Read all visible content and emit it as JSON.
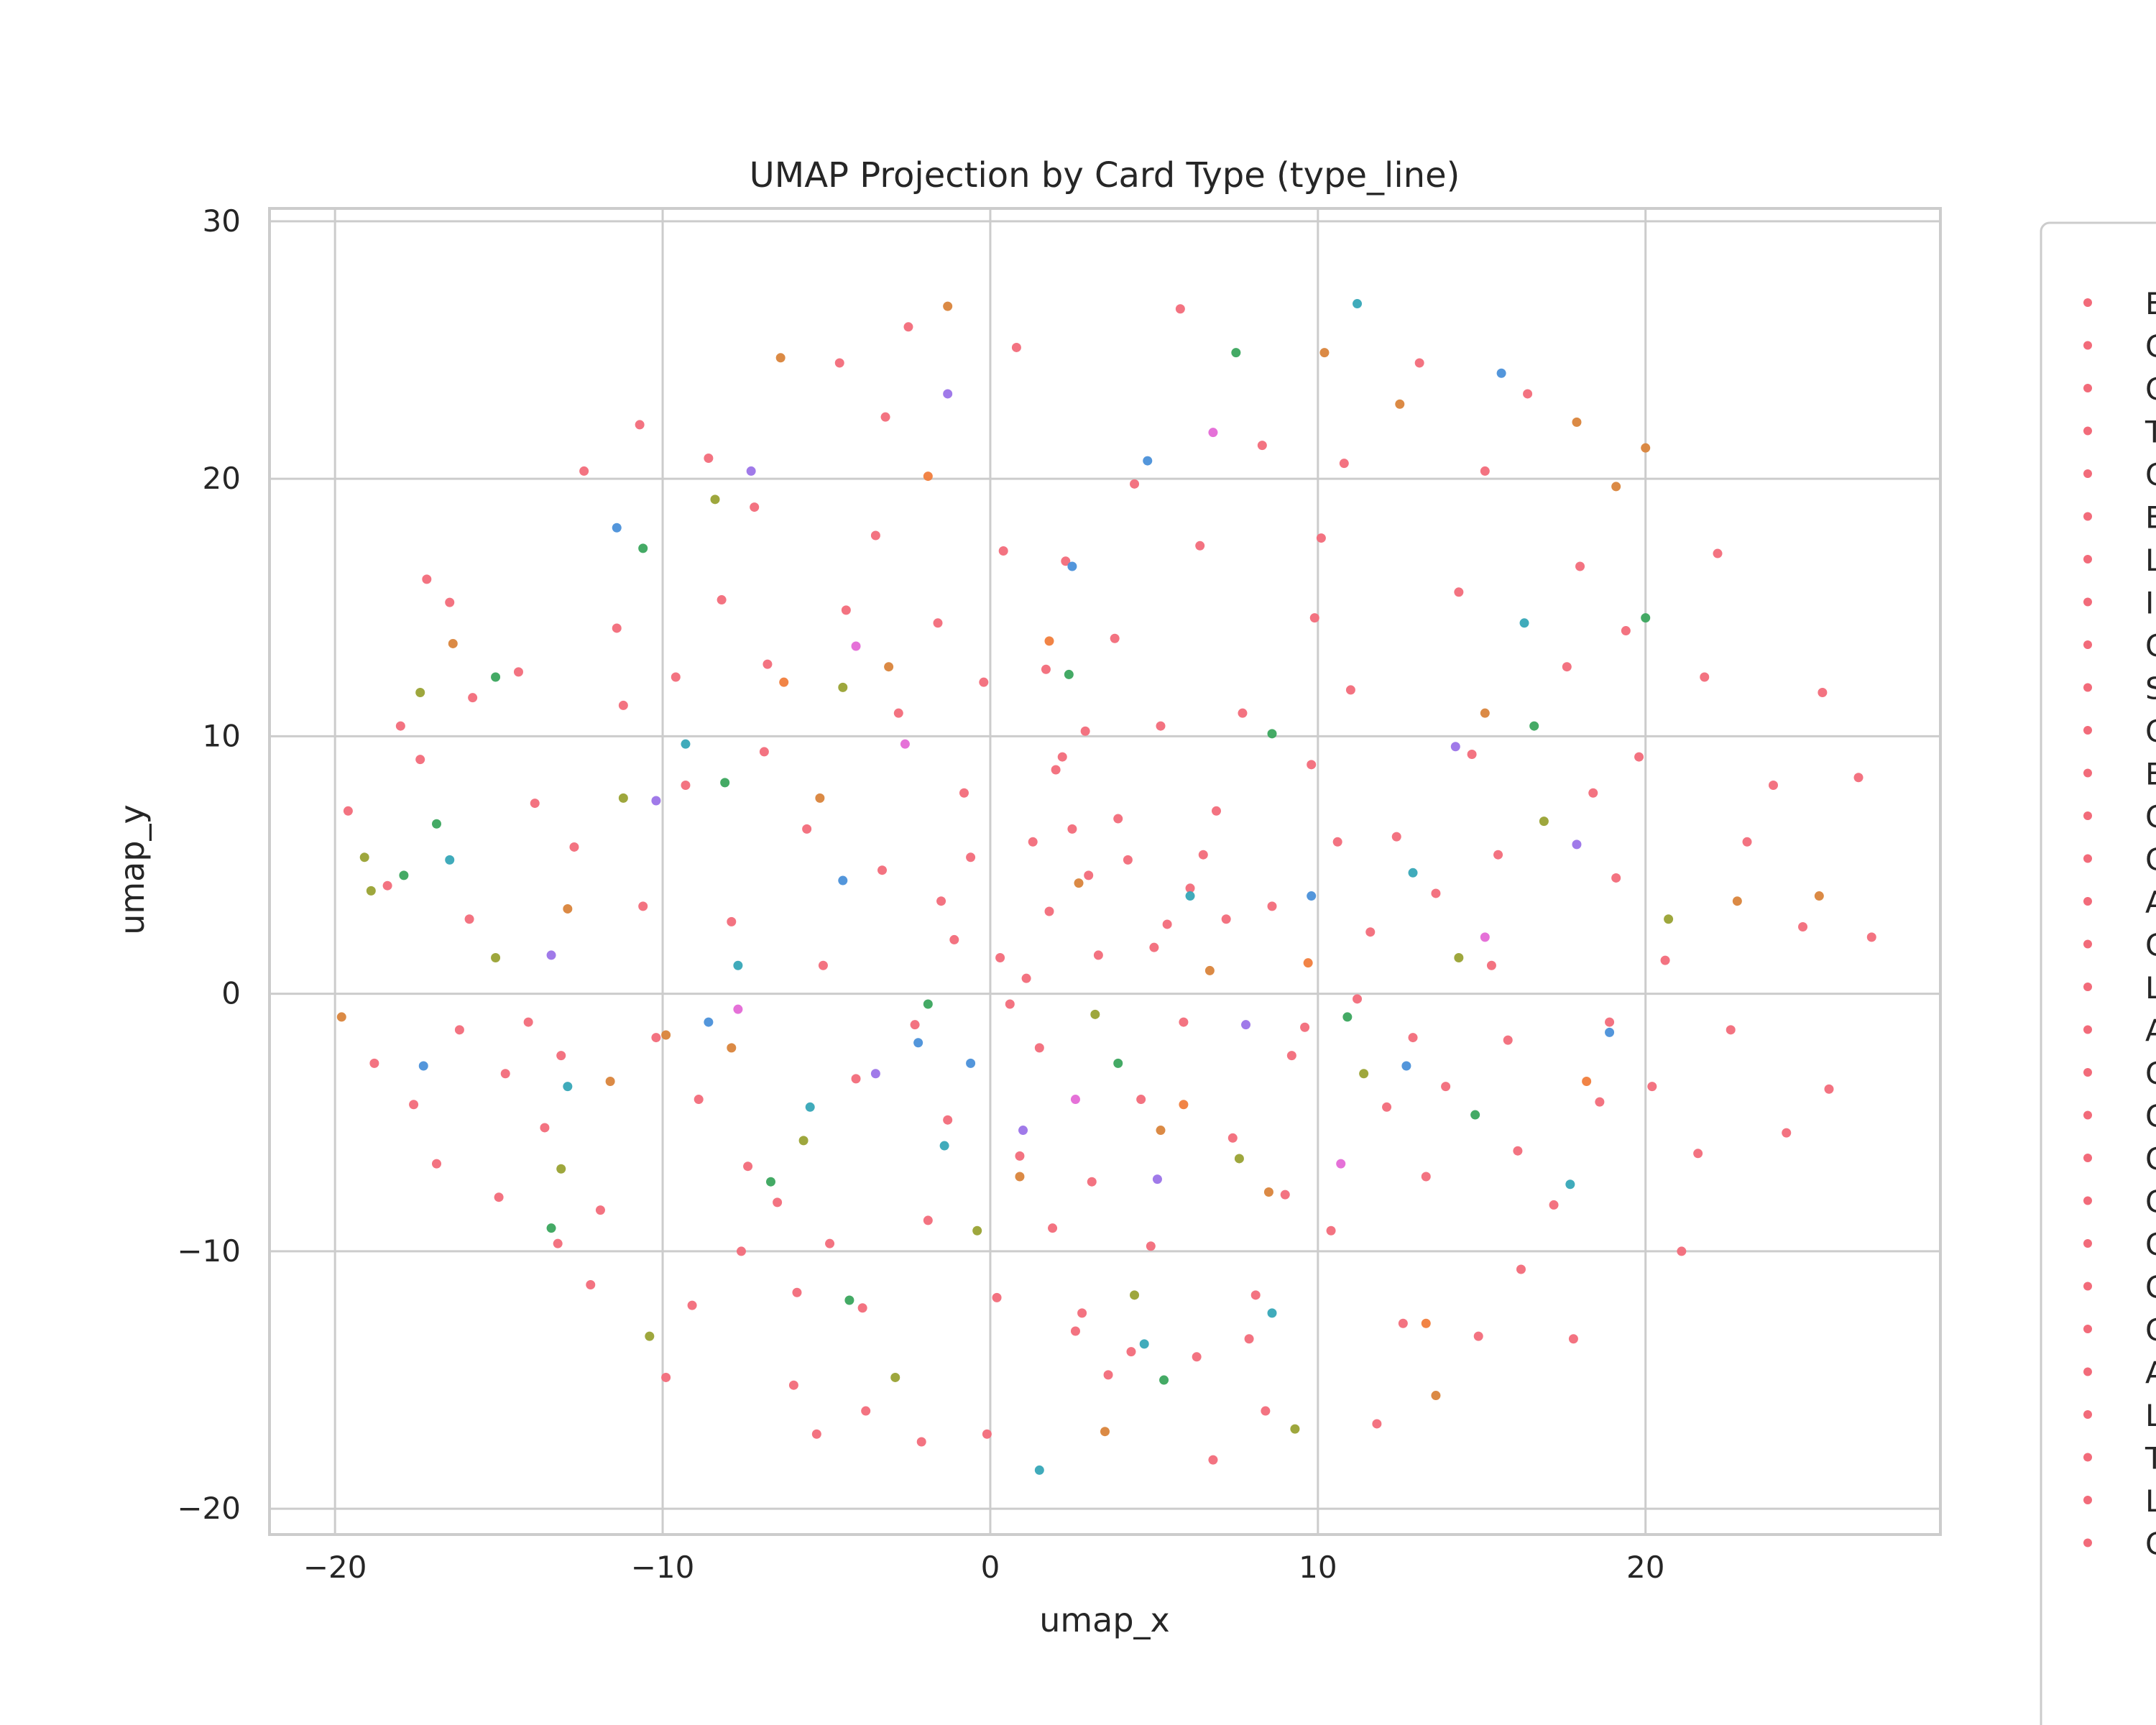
{
  "chart_data": {
    "type": "scatter",
    "title": "UMAP Projection by Card Type (type_line)",
    "xlabel": "umap_x",
    "ylabel": "umap_y",
    "xlim": [
      -22,
      29
    ],
    "ylim": [
      -21,
      30.5
    ],
    "xticks": [
      -20,
      -10,
      0,
      10,
      20
    ],
    "yticks": [
      -20,
      -10,
      0,
      10,
      20,
      30
    ],
    "xtick_labels": [
      "−20",
      "−10",
      "0",
      "10",
      "20"
    ],
    "ytick_labels": [
      "−20",
      "−10",
      "0",
      "10",
      "20",
      "30"
    ],
    "grid": true,
    "legend_placement": "right, outside plot (clipped at image edge)",
    "legend_labels": [
      "E",
      "C",
      "C",
      "T",
      "C",
      "E",
      "L",
      "I",
      "C",
      "S",
      "C",
      "E",
      "C",
      "C",
      "A",
      "C",
      "L",
      "A",
      "C",
      "C",
      "C",
      "C",
      "C",
      "C",
      "C",
      "A",
      "L",
      "T",
      "L",
      "C"
    ],
    "colors": {
      "background": "#ffffff",
      "grid": "#cccccc",
      "axes_edge": "#cccccc",
      "text": "#262626",
      "dominant_series": "#f26b7a",
      "secondary_series": [
        "#d9843b",
        "#99a233",
        "#3aa55d",
        "#36a6b7",
        "#4a90d9",
        "#9b73e8",
        "#e469d6",
        "#f07d3c"
      ]
    },
    "series": [
      {
        "color": "#f26b7a",
        "points": [
          [
            -19.6,
            7.1
          ],
          [
            -18,
            10.4
          ],
          [
            -17.6,
            -4.3
          ],
          [
            -17.2,
            16.1
          ],
          [
            -16.5,
            15.2
          ],
          [
            -15.8,
            11.5
          ],
          [
            -15,
            -7.9
          ],
          [
            -14.1,
            -1.1
          ],
          [
            -13.2,
            -9.7
          ],
          [
            -12.4,
            20.3
          ],
          [
            -11.4,
            14.2
          ],
          [
            -10.7,
            22.1
          ],
          [
            -9.9,
            -14.9
          ],
          [
            -9.1,
            -12.1
          ],
          [
            -8.6,
            20.8
          ],
          [
            -7.6,
            -10
          ],
          [
            -7.2,
            18.9
          ],
          [
            -6.5,
            -8.1
          ],
          [
            -6,
            -15.2
          ],
          [
            -5.3,
            -17.1
          ],
          [
            -4.6,
            24.5
          ],
          [
            -3.8,
            -16.2
          ],
          [
            -3.2,
            22.4
          ],
          [
            -2.5,
            25.9
          ],
          [
            -2.1,
            -17.4
          ],
          [
            -1.5,
            3.6
          ],
          [
            -1.1,
            2.1
          ],
          [
            -0.6,
            5.3
          ],
          [
            -0.1,
            -17.1
          ],
          [
            0.3,
            1.4
          ],
          [
            0.6,
            -0.4
          ],
          [
            0.8,
            25.1
          ],
          [
            1.1,
            0.6
          ],
          [
            1.3,
            5.9
          ],
          [
            1.5,
            -2.1
          ],
          [
            1.8,
            3.2
          ],
          [
            2,
            8.7
          ],
          [
            2.2,
            9.2
          ],
          [
            2.5,
            6.4
          ],
          [
            2.8,
            -12.4
          ],
          [
            3,
            4.6
          ],
          [
            3.3,
            1.5
          ],
          [
            3.6,
            -14.8
          ],
          [
            3.9,
            6.8
          ],
          [
            4.2,
            5.2
          ],
          [
            4.6,
            -4.1
          ],
          [
            5,
            1.8
          ],
          [
            5.4,
            2.7
          ],
          [
            5.8,
            26.6
          ],
          [
            6.1,
            4.1
          ],
          [
            6.5,
            5.4
          ],
          [
            6.8,
            -18.1
          ],
          [
            7.2,
            2.9
          ],
          [
            7.7,
            10.9
          ],
          [
            8.1,
            -11.7
          ],
          [
            8.6,
            3.4
          ],
          [
            9.2,
            -2.4
          ],
          [
            9.6,
            -1.3
          ],
          [
            10.1,
            17.7
          ],
          [
            10.6,
            5.9
          ],
          [
            11.2,
            -0.2
          ],
          [
            11.8,
            -16.7
          ],
          [
            12.4,
            6.1
          ],
          [
            13.1,
            24.5
          ],
          [
            13.9,
            -3.6
          ],
          [
            14.7,
            9.3
          ],
          [
            15.1,
            20.3
          ],
          [
            15.5,
            5.4
          ],
          [
            16.4,
            23.3
          ],
          [
            17.2,
            -8.2
          ],
          [
            18,
            16.6
          ],
          [
            18.6,
            -4.2
          ],
          [
            19.4,
            14.1
          ],
          [
            20.2,
            -3.6
          ],
          [
            21.1,
            -10
          ],
          [
            22.2,
            17.1
          ],
          [
            23.1,
            5.9
          ],
          [
            24.3,
            -5.4
          ],
          [
            25.6,
            -3.7
          ],
          [
            26.5,
            8.4
          ],
          [
            26.9,
            2.2
          ],
          [
            -18.8,
            -2.7
          ],
          [
            -16.9,
            -6.6
          ],
          [
            -14.4,
            12.5
          ],
          [
            -12.7,
            5.7
          ],
          [
            -10.6,
            3.4
          ],
          [
            -8.9,
            -4.1
          ],
          [
            -6.9,
            9.4
          ],
          [
            -4.9,
            -9.7
          ],
          [
            -3.5,
            17.8
          ],
          [
            -1.9,
            -8.8
          ],
          [
            0.4,
            17.2
          ],
          [
            2.6,
            -13.1
          ],
          [
            4.4,
            19.8
          ],
          [
            6.3,
            -14.1
          ],
          [
            8.3,
            21.3
          ],
          [
            10.4,
            -9.2
          ],
          [
            12.6,
            -12.8
          ],
          [
            14.3,
            15.6
          ],
          [
            16.2,
            -10.7
          ],
          [
            19.1,
            4.5
          ],
          [
            21.6,
            -6.2
          ],
          [
            23.9,
            8.1
          ],
          [
            24.8,
            2.6
          ],
          [
            25.4,
            11.7
          ],
          [
            -13.6,
            -5.2
          ],
          [
            -11.9,
            -8.4
          ],
          [
            -9.6,
            12.3
          ],
          [
            -7.9,
            2.8
          ],
          [
            -5.6,
            6.4
          ],
          [
            -4.1,
            -3.3
          ],
          [
            -2.8,
            10.9
          ],
          [
            -0.8,
            7.8
          ],
          [
            1.7,
            12.6
          ],
          [
            3.1,
            -7.3
          ],
          [
            5.2,
            10.4
          ],
          [
            7.4,
            -5.6
          ],
          [
            9.8,
            8.9
          ],
          [
            11.6,
            2.4
          ],
          [
            13.3,
            -7.1
          ],
          [
            15.8,
            -1.8
          ],
          [
            17.6,
            12.7
          ],
          [
            20.6,
            1.3
          ],
          [
            -15.9,
            2.9
          ],
          [
            -13.1,
            -2.4
          ],
          [
            -10.2,
            -1.7
          ],
          [
            -7.4,
            -6.7
          ],
          [
            -5.1,
            1.1
          ],
          [
            -3.3,
            4.8
          ],
          [
            -1.3,
            -4.9
          ],
          [
            0.9,
            -6.3
          ],
          [
            2.9,
            10.2
          ],
          [
            4.9,
            -9.8
          ],
          [
            6.9,
            7.1
          ],
          [
            9,
            -7.8
          ],
          [
            11,
            11.8
          ],
          [
            13.6,
            3.9
          ],
          [
            16.1,
            -6.1
          ],
          [
            18.4,
            7.8
          ],
          [
            22.6,
            -1.4
          ],
          [
            -17.4,
            9.1
          ],
          [
            -14.8,
            -3.1
          ],
          [
            -12.2,
            -11.3
          ],
          [
            -9.3,
            8.1
          ],
          [
            -6.8,
            12.8
          ],
          [
            -4.4,
            14.9
          ],
          [
            -2.3,
            -1.2
          ],
          [
            -0.2,
            12.1
          ],
          [
            1.9,
            -9.1
          ],
          [
            3.8,
            13.8
          ],
          [
            5.9,
            -1.1
          ],
          [
            7.9,
            -13.4
          ],
          [
            9.9,
            14.6
          ],
          [
            12.1,
            -4.4
          ],
          [
            14.9,
            -13.3
          ],
          [
            17.8,
            -13.4
          ],
          [
            19.8,
            9.2
          ],
          [
            -18.4,
            4.2
          ],
          [
            -16.2,
            -1.4
          ],
          [
            -13.9,
            7.4
          ],
          [
            -11.2,
            11.2
          ],
          [
            -8.2,
            15.3
          ],
          [
            -5.9,
            -11.6
          ],
          [
            -3.9,
            -12.2
          ],
          [
            -1.6,
            14.4
          ],
          [
            0.2,
            -11.8
          ],
          [
            2.3,
            16.8
          ],
          [
            4.3,
            -13.9
          ],
          [
            6.4,
            17.4
          ],
          [
            8.4,
            -16.2
          ],
          [
            10.8,
            20.6
          ],
          [
            12.9,
            -1.7
          ],
          [
            15.3,
            1.1
          ],
          [
            18.9,
            -1.1
          ],
          [
            21.8,
            12.3
          ]
        ]
      },
      {
        "color": "#d9843b",
        "points": [
          [
            -19.8,
            -0.9
          ],
          [
            -16.4,
            13.6
          ],
          [
            -12.9,
            3.3
          ],
          [
            -9.9,
            -1.6
          ],
          [
            -7.9,
            -2.1
          ],
          [
            -6.4,
            24.7
          ],
          [
            -3.1,
            12.7
          ],
          [
            -1.3,
            26.7
          ],
          [
            0.9,
            -7.1
          ],
          [
            3.5,
            -17
          ],
          [
            5.2,
            -5.3
          ],
          [
            8.5,
            -7.7
          ],
          [
            10.2,
            24.9
          ],
          [
            12.5,
            22.9
          ],
          [
            15.1,
            10.9
          ],
          [
            17.9,
            22.2
          ],
          [
            19.1,
            19.7
          ],
          [
            20,
            21.2
          ],
          [
            22.8,
            3.6
          ],
          [
            25.3,
            3.8
          ],
          [
            -11.6,
            -3.4
          ],
          [
            -5.2,
            7.6
          ],
          [
            2.7,
            4.3
          ],
          [
            6.7,
            0.9
          ],
          [
            13.6,
            -15.6
          ]
        ]
      },
      {
        "color": "#99a233",
        "points": [
          [
            -19.1,
            5.3
          ],
          [
            -18.9,
            4
          ],
          [
            -17.4,
            11.7
          ],
          [
            -15.1,
            1.4
          ],
          [
            -13.1,
            -6.8
          ],
          [
            -10.4,
            -13.3
          ],
          [
            -8.4,
            19.2
          ],
          [
            -5.7,
            -5.7
          ],
          [
            -2.9,
            -14.9
          ],
          [
            -0.4,
            -9.2
          ],
          [
            3.2,
            -0.8
          ],
          [
            4.4,
            -11.7
          ],
          [
            7.6,
            -6.4
          ],
          [
            9.3,
            -16.9
          ],
          [
            11.4,
            -3.1
          ],
          [
            14.3,
            1.4
          ],
          [
            16.9,
            6.7
          ],
          [
            20.7,
            2.9
          ],
          [
            -11.2,
            7.6
          ],
          [
            -4.5,
            11.9
          ]
        ]
      },
      {
        "color": "#3aa55d",
        "points": [
          [
            -17.9,
            4.6
          ],
          [
            -16.9,
            6.6
          ],
          [
            -15.1,
            12.3
          ],
          [
            -13.4,
            -9.1
          ],
          [
            -10.6,
            17.3
          ],
          [
            -6.7,
            -7.3
          ],
          [
            -4.3,
            -11.9
          ],
          [
            -1.9,
            -0.4
          ],
          [
            2.4,
            12.4
          ],
          [
            5.3,
            -15
          ],
          [
            7.5,
            24.9
          ],
          [
            8.6,
            10.1
          ],
          [
            10.9,
            -0.9
          ],
          [
            14.8,
            -4.7
          ],
          [
            16.6,
            10.4
          ],
          [
            20,
            14.6
          ],
          [
            -8.1,
            8.2
          ],
          [
            3.9,
            -2.7
          ]
        ]
      },
      {
        "color": "#36a6b7",
        "points": [
          [
            -16.5,
            5.2
          ],
          [
            -12.9,
            -3.6
          ],
          [
            -9.3,
            9.7
          ],
          [
            -5.5,
            -4.4
          ],
          [
            -1.4,
            -5.9
          ],
          [
            1.5,
            -18.5
          ],
          [
            4.7,
            -13.6
          ],
          [
            8.6,
            -12.4
          ],
          [
            11.2,
            26.8
          ],
          [
            12.9,
            4.7
          ],
          [
            16.3,
            14.4
          ],
          [
            17.7,
            -7.4
          ],
          [
            -7.7,
            1.1
          ],
          [
            6.1,
            3.8
          ]
        ]
      },
      {
        "color": "#4a90d9",
        "points": [
          [
            -17.3,
            -2.8
          ],
          [
            -11.4,
            18.1
          ],
          [
            -8.6,
            -1.1
          ],
          [
            -4.5,
            4.4
          ],
          [
            -0.6,
            -2.7
          ],
          [
            2.5,
            16.6
          ],
          [
            4.8,
            20.7
          ],
          [
            9.8,
            3.8
          ],
          [
            12.7,
            -2.8
          ],
          [
            15.6,
            24.1
          ],
          [
            18.9,
            -1.5
          ],
          [
            -2.2,
            -1.9
          ]
        ]
      },
      {
        "color": "#9b73e8",
        "points": [
          [
            -10.2,
            7.5
          ],
          [
            -7.3,
            20.3
          ],
          [
            -3.5,
            -3.1
          ],
          [
            -1.3,
            23.3
          ],
          [
            1,
            -5.3
          ],
          [
            5.1,
            -7.2
          ],
          [
            7.8,
            -1.2
          ],
          [
            14.2,
            9.6
          ],
          [
            17.9,
            5.8
          ],
          [
            -13.4,
            1.5
          ]
        ]
      },
      {
        "color": "#e469d6",
        "points": [
          [
            -7.7,
            -0.6
          ],
          [
            -2.6,
            9.7
          ],
          [
            2.6,
            -4.1
          ],
          [
            6.8,
            21.8
          ],
          [
            10.7,
            -6.6
          ],
          [
            15.1,
            2.2
          ],
          [
            -4.1,
            13.5
          ]
        ]
      },
      {
        "color": "#f07d3c",
        "points": [
          [
            -6.3,
            12.1
          ],
          [
            -1.9,
            20.1
          ],
          [
            1.8,
            13.7
          ],
          [
            5.9,
            -4.3
          ],
          [
            9.7,
            1.2
          ],
          [
            13.3,
            -12.8
          ],
          [
            18.2,
            -3.4
          ]
        ]
      }
    ]
  }
}
